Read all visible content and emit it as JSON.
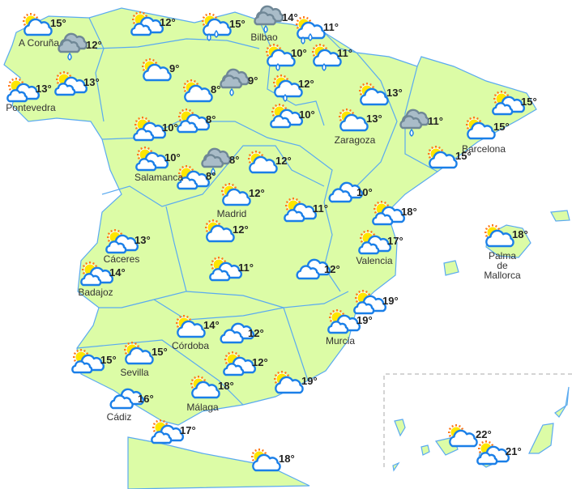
{
  "colors": {
    "land": "#dcfca6",
    "border": "#5aaaf0",
    "cloud_stroke": "#1a7fe8",
    "rain_cloud": "#a9bcc8",
    "sun": "#ffe600",
    "sun_rays": "#ff7a1a"
  },
  "cities": [
    "A Coruña",
    "Pontevedra",
    "Bilbao",
    "Zaragoza",
    "Barcelona",
    "Salamanca",
    "Madrid",
    "Cáceres",
    "Valencia",
    "Palma de Mallorca",
    "Badajoz",
    "Murcia",
    "Córdoba",
    "Sevilla",
    "Cádiz",
    "Málaga"
  ],
  "forecasts": [
    {
      "icon": "sun-cloud",
      "temp": "15°"
    },
    {
      "icon": "grey-rain",
      "temp": "12°"
    },
    {
      "icon": "sun-two-clouds",
      "temp": "13°"
    },
    {
      "icon": "sun-two-clouds",
      "temp": "13°"
    },
    {
      "icon": "sun-two-clouds",
      "temp": "12°"
    },
    {
      "icon": "sun-cloud",
      "temp": "9°"
    },
    {
      "icon": "sun-cloud-rain2",
      "temp": "15°"
    },
    {
      "icon": "grey-rain",
      "temp": "14°"
    },
    {
      "icon": "sun-cloud-rain2",
      "temp": "11°"
    },
    {
      "icon": "sun-cloud",
      "temp": "8°"
    },
    {
      "icon": "grey-rain",
      "temp": "9°"
    },
    {
      "icon": "sun-cloud-rain",
      "temp": "10°"
    },
    {
      "icon": "sun-cloud-rain",
      "temp": "11°"
    },
    {
      "icon": "sun-cloud-rain",
      "temp": "12°"
    },
    {
      "icon": "sun-two-clouds",
      "temp": "10°"
    },
    {
      "icon": "sun-cloud",
      "temp": "13°"
    },
    {
      "icon": "sun-cloud",
      "temp": "13°"
    },
    {
      "icon": "grey-rain",
      "temp": "11°"
    },
    {
      "icon": "sun-two-clouds",
      "temp": "15°"
    },
    {
      "icon": "sun-cloud",
      "temp": "15°"
    },
    {
      "icon": "sun-cloud",
      "temp": "15°"
    },
    {
      "icon": "sun-two-clouds",
      "temp": "10°"
    },
    {
      "icon": "sun-two-clouds",
      "temp": "8°"
    },
    {
      "icon": "sun-two-clouds",
      "temp": "10°"
    },
    {
      "icon": "grey-rain",
      "temp": "8°"
    },
    {
      "icon": "sun-two-clouds",
      "temp": "8°"
    },
    {
      "icon": "sun-cloud",
      "temp": "12°"
    },
    {
      "icon": "sun-cloud",
      "temp": "12°"
    },
    {
      "icon": "sun-two-clouds",
      "temp": "11°"
    },
    {
      "icon": "two-clouds",
      "temp": "10°"
    },
    {
      "icon": "sun-two-clouds",
      "temp": "18°"
    },
    {
      "icon": "sun-two-clouds",
      "temp": "17°"
    },
    {
      "icon": "sun-cloud",
      "temp": "18°"
    },
    {
      "icon": "sun-two-clouds",
      "temp": "13°"
    },
    {
      "icon": "sun-two-clouds",
      "temp": "14°"
    },
    {
      "icon": "sun-cloud",
      "temp": "12°"
    },
    {
      "icon": "sun-two-clouds",
      "temp": "11°"
    },
    {
      "icon": "two-clouds",
      "temp": "12°"
    },
    {
      "icon": "sun-two-clouds",
      "temp": "19°"
    },
    {
      "icon": "sun-two-clouds",
      "temp": "19°"
    },
    {
      "icon": "sun-cloud",
      "temp": "14°"
    },
    {
      "icon": "two-clouds",
      "temp": "12°"
    },
    {
      "icon": "sun-two-clouds",
      "temp": "12°"
    },
    {
      "icon": "sun-two-clouds",
      "temp": "15°"
    },
    {
      "icon": "sun-cloud",
      "temp": "15°"
    },
    {
      "icon": "sun-cloud",
      "temp": "19°"
    },
    {
      "icon": "sun-cloud",
      "temp": "18°"
    },
    {
      "icon": "two-clouds",
      "temp": "16°"
    },
    {
      "icon": "sun-two-clouds",
      "temp": "17°"
    },
    {
      "icon": "sun-cloud",
      "temp": "18°"
    },
    {
      "icon": "sun-cloud",
      "temp": "22°"
    },
    {
      "icon": "sun-two-clouds",
      "temp": "21°"
    }
  ]
}
